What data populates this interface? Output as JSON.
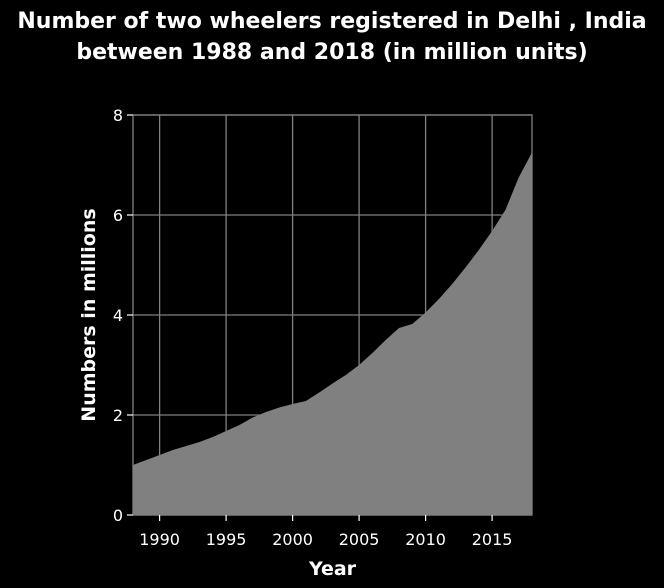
{
  "chart_data": {
    "type": "area",
    "title": "Number of two wheelers registered in Delhi , India between 1988 and 2018 (in million units)",
    "xlabel": "Year",
    "ylabel": "Numbers in millions",
    "xlim": [
      1988,
      2018
    ],
    "ylim": [
      0,
      8
    ],
    "xticks": [
      "1990",
      "1995",
      "2000",
      "2005",
      "2010",
      "2015"
    ],
    "yticks": [
      "0",
      "2",
      "4",
      "6",
      "8"
    ],
    "grid": true,
    "x": [
      1988,
      1989,
      1990,
      1991,
      1992,
      1993,
      1994,
      1995,
      1996,
      1997,
      1998,
      1999,
      2000,
      2001,
      2002,
      2003,
      2004,
      2005,
      2006,
      2007,
      2008,
      2009,
      2010,
      2011,
      2012,
      2013,
      2014,
      2015,
      2016,
      2017,
      2018
    ],
    "values": [
      1.0,
      1.1,
      1.2,
      1.3,
      1.38,
      1.46,
      1.56,
      1.68,
      1.8,
      1.95,
      2.06,
      2.15,
      2.22,
      2.28,
      2.45,
      2.63,
      2.8,
      3.0,
      3.24,
      3.5,
      3.74,
      3.82,
      4.05,
      4.32,
      4.62,
      4.95,
      5.3,
      5.68,
      6.1,
      6.75,
      7.25
    ],
    "fill_color": "#808080",
    "grid_color": "#808080"
  }
}
